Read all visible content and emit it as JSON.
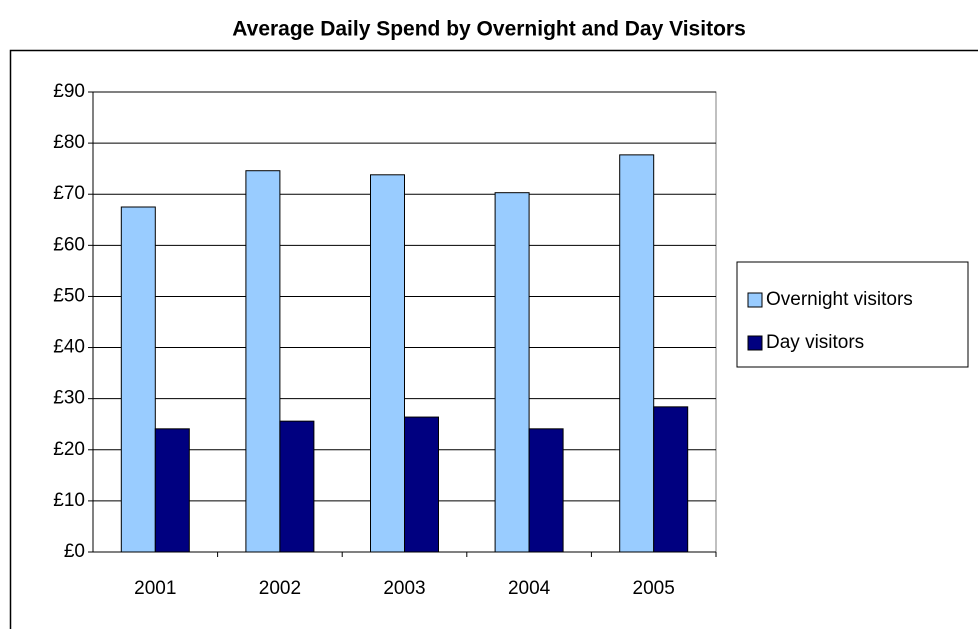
{
  "chart_data": {
    "type": "bar",
    "title": "Average Daily Spend by Overnight and Day Visitors",
    "categories": [
      "2001",
      "2002",
      "2003",
      "2004",
      "2005"
    ],
    "series": [
      {
        "name": "Overnight visitors",
        "color": "#99ccff",
        "values": [
          67.5,
          74.6,
          73.8,
          70.3,
          77.7
        ]
      },
      {
        "name": "Day visitors",
        "color": "#000080",
        "values": [
          24.1,
          25.6,
          26.4,
          24.1,
          28.4
        ]
      }
    ],
    "ylim": [
      0,
      90
    ],
    "yticks": [
      {
        "value": 0,
        "label": "£0"
      },
      {
        "value": 10,
        "label": "£10"
      },
      {
        "value": 20,
        "label": "£20"
      },
      {
        "value": 30,
        "label": "£30"
      },
      {
        "value": 40,
        "label": "£40"
      },
      {
        "value": 50,
        "label": "£50"
      },
      {
        "value": 60,
        "label": "£60"
      },
      {
        "value": 70,
        "label": "£70"
      },
      {
        "value": 80,
        "label": "£80"
      },
      {
        "value": 90,
        "label": "£90"
      }
    ],
    "grid": true,
    "legend": "right"
  }
}
